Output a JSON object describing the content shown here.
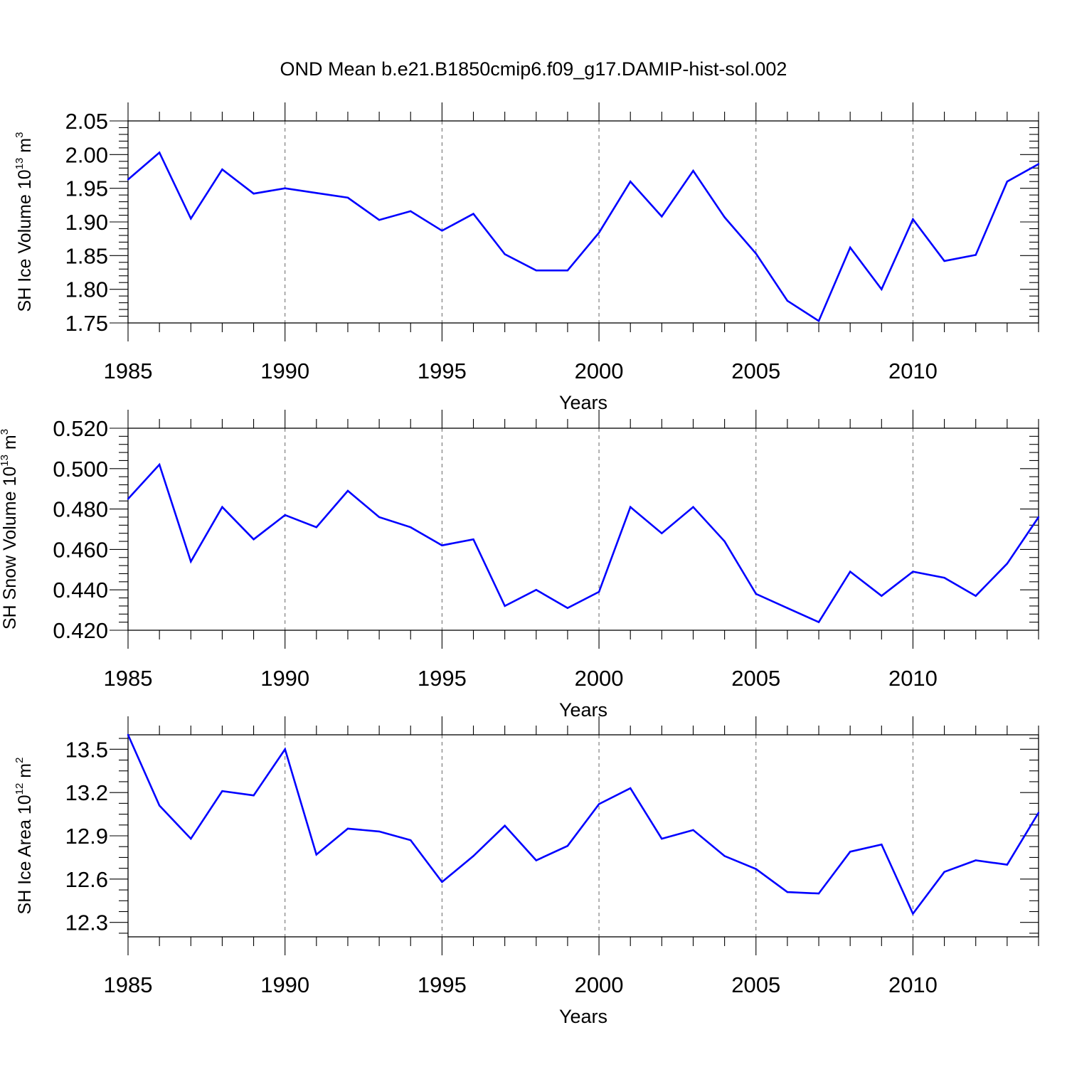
{
  "figure": {
    "title": "OND Mean b.e21.B1850cmip6.f09_g17.DAMIP-hist-sol.002"
  },
  "chart_data": [
    {
      "type": "line",
      "title": "OND Mean b.e21.B1850cmip6.f09_g17.DAMIP-hist-sol.002",
      "xlabel": "Years",
      "ylabel": {
        "text": "SH Ice Volume 10",
        "sup1": "13",
        "unit": " m",
        "sup2": "3"
      },
      "xlim": [
        1985,
        2014
      ],
      "ylim": [
        1.75,
        2.05
      ],
      "xticks": [
        "1985",
        "1990",
        "1995",
        "2000",
        "2005",
        "2010"
      ],
      "yticks": [
        "1.75",
        "1.80",
        "1.85",
        "1.90",
        "1.95",
        "2.00",
        "2.05"
      ],
      "grid": "vertical dashed at major x ticks",
      "series_color": "#0000ff",
      "x": [
        1985,
        1986,
        1987,
        1988,
        1989,
        1990,
        1991,
        1992,
        1993,
        1994,
        1995,
        1996,
        1997,
        1998,
        1999,
        2000,
        2001,
        2002,
        2003,
        2004,
        2005,
        2006,
        2007,
        2008,
        2009,
        2010,
        2011,
        2012,
        2013,
        2014
      ],
      "values": [
        1.963,
        2.003,
        1.905,
        1.978,
        1.942,
        1.95,
        1.943,
        1.936,
        1.903,
        1.916,
        1.887,
        1.912,
        1.852,
        1.828,
        1.828,
        1.884,
        1.96,
        1.908,
        1.976,
        1.907,
        1.853,
        1.783,
        1.753,
        1.862,
        1.8,
        1.904,
        1.842,
        1.851,
        1.96,
        1.986
      ]
    },
    {
      "type": "line",
      "xlabel": "Years",
      "ylabel": {
        "text": "SH Snow Volume 10",
        "sup1": "13",
        "unit": " m",
        "sup2": "3"
      },
      "xlim": [
        1985,
        2014
      ],
      "ylim": [
        0.42,
        0.52
      ],
      "xticks": [
        "1985",
        "1990",
        "1995",
        "2000",
        "2005",
        "2010"
      ],
      "yticks": [
        "0.420",
        "0.440",
        "0.460",
        "0.480",
        "0.500",
        "0.520"
      ],
      "grid": "vertical dashed at major x ticks",
      "series_color": "#0000ff",
      "x": [
        1985,
        1986,
        1987,
        1988,
        1989,
        1990,
        1991,
        1992,
        1993,
        1994,
        1995,
        1996,
        1997,
        1998,
        1999,
        2000,
        2001,
        2002,
        2003,
        2004,
        2005,
        2006,
        2007,
        2008,
        2009,
        2010,
        2011,
        2012,
        2013,
        2014
      ],
      "values": [
        0.485,
        0.502,
        0.454,
        0.481,
        0.465,
        0.477,
        0.471,
        0.489,
        0.476,
        0.471,
        0.462,
        0.465,
        0.432,
        0.44,
        0.431,
        0.439,
        0.481,
        0.468,
        0.481,
        0.464,
        0.438,
        0.431,
        0.424,
        0.449,
        0.437,
        0.449,
        0.446,
        0.437,
        0.453,
        0.476
      ]
    },
    {
      "type": "line",
      "xlabel": "Years",
      "ylabel": {
        "text": "SH Ice Area 10",
        "sup1": "12",
        "unit": " m",
        "sup2": "2"
      },
      "xlim": [
        1985,
        2014
      ],
      "ylim": [
        12.2,
        13.6
      ],
      "xticks": [
        "1985",
        "1990",
        "1995",
        "2000",
        "2005",
        "2010"
      ],
      "yticks": [
        "12.3",
        "12.6",
        "12.9",
        "13.2",
        "13.5"
      ],
      "grid": "vertical dashed at major x ticks",
      "series_color": "#0000ff",
      "x": [
        1985,
        1986,
        1987,
        1988,
        1989,
        1990,
        1991,
        1992,
        1993,
        1994,
        1995,
        1996,
        1997,
        1998,
        1999,
        2000,
        2001,
        2002,
        2003,
        2004,
        2005,
        2006,
        2007,
        2008,
        2009,
        2010,
        2011,
        2012,
        2013,
        2014
      ],
      "values": [
        13.6,
        13.11,
        12.88,
        13.21,
        13.18,
        13.5,
        12.77,
        12.95,
        12.93,
        12.87,
        12.58,
        12.76,
        12.97,
        12.73,
        12.83,
        13.12,
        13.23,
        12.88,
        12.94,
        12.76,
        12.67,
        12.51,
        12.5,
        12.79,
        12.84,
        12.36,
        12.65,
        12.73,
        12.7,
        13.06
      ]
    }
  ]
}
